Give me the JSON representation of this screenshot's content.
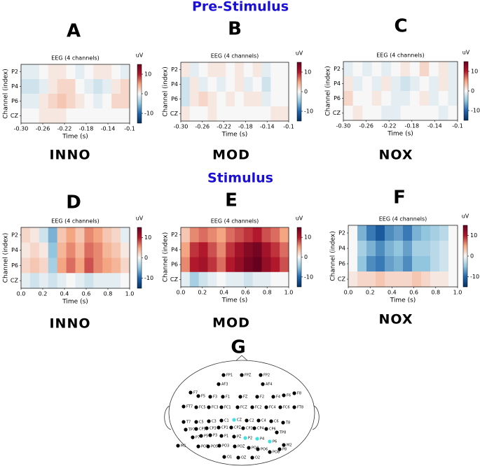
{
  "headings": [
    "Pre-Stimulus",
    "Stimulus"
  ],
  "chart_data": [
    {
      "type": "heatmap",
      "panel": "A",
      "label": "INNO",
      "title": "EEG (4 channels)",
      "x_label": "Time (s)",
      "y_label": "Channel (index)",
      "categories": [
        "P2",
        "P4",
        "P6",
        "CZ"
      ],
      "xlim": [
        -0.3,
        -0.1
      ],
      "xticks": [
        {
          "value": -0.3,
          "label": "-0.30"
        },
        -0.26,
        -0.22,
        -0.18,
        -0.14,
        -0.1
      ],
      "colormap": "RdBu_r",
      "colorbar_label": "uV",
      "zlim": [
        -15,
        15
      ],
      "zticks": [
        10,
        0,
        -10
      ],
      "values": [
        [
          -1,
          -1,
          0,
          1,
          1,
          0,
          -1,
          0,
          1,
          1,
          0,
          -1
        ],
        [
          -2,
          -2,
          -1,
          1,
          2,
          2,
          0,
          -1,
          -2,
          -1,
          1,
          2
        ],
        [
          -1,
          -1,
          1,
          2,
          3,
          2,
          1,
          0,
          -1,
          0,
          2,
          2
        ],
        [
          0,
          0,
          1,
          1,
          1,
          0,
          0,
          0,
          0,
          0,
          0,
          0
        ]
      ]
    },
    {
      "type": "heatmap",
      "panel": "B",
      "label": "MOD",
      "title": "EEG (4 channels)",
      "x_label": "Time (s)",
      "y_label": "Channel (index)",
      "categories": [
        "P2",
        "P4",
        "P6",
        "CZ"
      ],
      "xlim": [
        -0.3,
        -0.1
      ],
      "xticks": [
        {
          "value": -0.3,
          "label": "-0.30"
        },
        -0.26,
        -0.22,
        -0.18,
        -0.14,
        -0.1
      ],
      "colormap": "RdBu_r",
      "colorbar_label": "uV",
      "zlim": [
        -15,
        15
      ],
      "zticks": [
        10,
        0,
        -10
      ],
      "values": [
        [
          1,
          -1,
          0,
          1,
          1,
          0,
          1,
          0,
          1,
          -1,
          0,
          0
        ],
        [
          -2,
          1,
          -1,
          0,
          -1,
          0,
          1,
          -1,
          0,
          -2,
          0,
          0
        ],
        [
          -2,
          1,
          2,
          1,
          0,
          1,
          0,
          1,
          1,
          -1,
          0,
          0
        ],
        [
          1,
          0,
          0,
          1,
          0,
          0,
          0,
          0,
          0,
          0,
          1,
          1
        ]
      ]
    },
    {
      "type": "heatmap",
      "panel": "C",
      "label": "NOX",
      "title": "EEG (4 channels)",
      "x_label": "Time (s)",
      "y_label": "Channel (index)",
      "categories": [
        "P2",
        "P4",
        "P6",
        "CZ"
      ],
      "xlim": [
        -0.3,
        -0.1
      ],
      "xticks": [
        {
          "value": -0.3,
          "label": "-0.30"
        },
        -0.26,
        -0.22,
        -0.18,
        -0.14,
        -0.1
      ],
      "colormap": "RdBu_r",
      "colorbar_label": "uV",
      "zlim": [
        -15,
        15
      ],
      "zticks": [
        10,
        0,
        -10
      ],
      "values": [
        [
          -1,
          0,
          -1,
          0,
          -1,
          0,
          1,
          0,
          2,
          0,
          1,
          -1
        ],
        [
          1,
          -1,
          0,
          -1,
          1,
          -1,
          -2,
          -1,
          0,
          -1,
          1,
          -1
        ],
        [
          2,
          0,
          0,
          1,
          0,
          -1,
          -1,
          0,
          1,
          -1,
          0,
          -1
        ],
        [
          0,
          1,
          0,
          0,
          -1,
          -1,
          0,
          0,
          0,
          0,
          -1,
          0
        ]
      ]
    },
    {
      "type": "heatmap",
      "panel": "D",
      "label": "INNO",
      "title": "EEG (4 channels)",
      "x_label": "Time (s)",
      "y_label": "Channel (index)",
      "categories": [
        "P2",
        "P4",
        "P6",
        "CZ"
      ],
      "xlim": [
        0,
        1
      ],
      "xticks": [
        {
          "value": 0,
          "label": "0.0"
        },
        0.2,
        0.4,
        0.6,
        0.8,
        {
          "value": 1,
          "label": "1.0"
        }
      ],
      "colormap": "RdBu_r",
      "colorbar_label": "uV",
      "zlim": [
        -15,
        15
      ],
      "zticks": [
        10,
        0,
        -10
      ],
      "values": [
        [
          2,
          1,
          -2,
          -6,
          3,
          5,
          3,
          6,
          5,
          3,
          2,
          -1
        ],
        [
          1,
          2,
          1,
          -5,
          4,
          6,
          4,
          7,
          6,
          4,
          3,
          1
        ],
        [
          2,
          3,
          2,
          -4,
          5,
          7,
          5,
          8,
          6,
          5,
          4,
          2
        ],
        [
          -1,
          -2,
          -1,
          -2,
          -1,
          0,
          -1,
          -2,
          -1,
          -1,
          -1,
          0
        ]
      ]
    },
    {
      "type": "heatmap",
      "panel": "E",
      "label": "MOD",
      "title": "EEG (4 channels)",
      "x_label": "Time (s)",
      "y_label": "Channel (index)",
      "categories": [
        "P2",
        "P4",
        "P6",
        "CZ"
      ],
      "xlim": [
        0,
        1
      ],
      "xticks": [
        {
          "value": 0,
          "label": "0.0"
        },
        0.2,
        0.4,
        0.6,
        0.8,
        {
          "value": 1,
          "label": "1.0"
        }
      ],
      "colormap": "RdBu_r",
      "colorbar_label": "uV",
      "zlim": [
        -15,
        15
      ],
      "zticks": [
        10,
        0,
        -10
      ],
      "values": [
        [
          3,
          6,
          7,
          6,
          5,
          7,
          8,
          9,
          10,
          8,
          7,
          5
        ],
        [
          5,
          9,
          10,
          8,
          6,
          9,
          11,
          13,
          14,
          11,
          9,
          7
        ],
        [
          6,
          10,
          11,
          9,
          7,
          10,
          12,
          14,
          15,
          12,
          10,
          8
        ],
        [
          -1,
          -4,
          -2,
          -1,
          0,
          -1,
          -1,
          -2,
          -1,
          -1,
          0,
          0
        ]
      ]
    },
    {
      "type": "heatmap",
      "panel": "F",
      "label": "NOX",
      "title": "EEG (4 channels)",
      "x_label": "Time (s)",
      "y_label": "Channel (index)",
      "categories": [
        "P2",
        "P4",
        "P6",
        "CZ"
      ],
      "xlim": [
        0,
        1
      ],
      "xticks": [
        {
          "value": 0,
          "label": "0.0"
        },
        0.2,
        0.4,
        0.6,
        0.8,
        {
          "value": 1,
          "label": "1.0"
        }
      ],
      "colormap": "RdBu_r",
      "colorbar_label": "uV",
      "zlim": [
        -15,
        15
      ],
      "zticks": [
        10,
        0,
        -10
      ],
      "values": [
        [
          0,
          -6,
          -9,
          -11,
          -8,
          -7,
          -9,
          -6,
          -5,
          -4,
          -3,
          0
        ],
        [
          0,
          -4,
          -6,
          -8,
          -6,
          -5,
          -7,
          -4,
          -4,
          -3,
          -2,
          0
        ],
        [
          0,
          -5,
          -8,
          -9,
          -7,
          -6,
          -8,
          -5,
          -5,
          -3,
          -2,
          0
        ],
        [
          1,
          2,
          2,
          3,
          2,
          2,
          2,
          3,
          2,
          1,
          1,
          0
        ]
      ]
    }
  ],
  "electrode_map": {
    "panel": "G",
    "highlight_color": "#40e0e0",
    "highlighted": [
      "CZ",
      "P2",
      "P4",
      "P6"
    ],
    "electrodes": [
      "FP1",
      "FPZ",
      "FP2",
      "AF3",
      "AF4",
      "F7",
      "F5",
      "F3",
      "F1",
      "FZ",
      "F2",
      "F4",
      "F6",
      "F8",
      "FT7",
      "FC5",
      "FC3",
      "FC1",
      "FCZ",
      "FC2",
      "FC4",
      "FC6",
      "FT8",
      "T7",
      "C5",
      "C3",
      "C1",
      "CZ",
      "C2",
      "C4",
      "C6",
      "T8",
      "TP7",
      "CP5",
      "CP3",
      "CP1",
      "CPZ",
      "CP2",
      "CP4",
      "CP6",
      "TP8",
      "P7",
      "P5",
      "P3",
      "P1",
      "PZ",
      "P2",
      "P4",
      "P6",
      "P8",
      "M1",
      "M2",
      "PO7",
      "PO5",
      "PO3",
      "POZ",
      "PO4",
      "PO6",
      "PO8",
      "O1",
      "OZ",
      "O2"
    ]
  }
}
